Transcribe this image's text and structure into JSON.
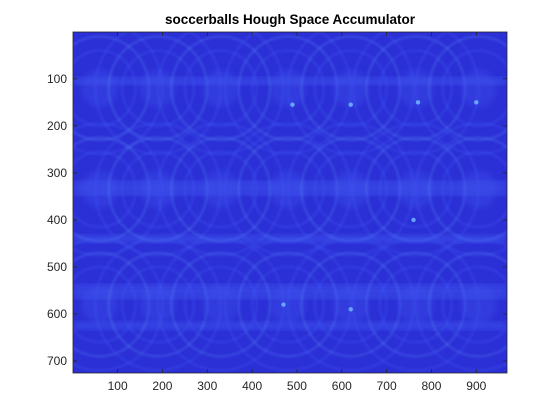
{
  "chart_data": {
    "type": "heatmap",
    "title": "soccerballs Hough Space Accumulator",
    "xlabel": "",
    "ylabel": "",
    "xlim": [
      0.5,
      968.5
    ],
    "ylim": [
      0.5,
      725.5
    ],
    "y_reversed": true,
    "grid": false,
    "colormap": "cool-blue",
    "xticks": [
      100,
      200,
      300,
      400,
      500,
      600,
      700,
      800,
      900
    ],
    "yticks": [
      100,
      200,
      300,
      400,
      500,
      600,
      700
    ],
    "colors": {
      "background": "#2b2fd6",
      "mid": "#3f55ee",
      "highlight": "#6aaaff",
      "axis": "#262626"
    },
    "ball_grid": {
      "columns_x": [
        60,
        190,
        330,
        480,
        620,
        765,
        905
      ],
      "rows_y": [
        120,
        335,
        580
      ],
      "radius_range": [
        80,
        140
      ]
    },
    "bright_bands_y": [
      105,
      325,
      340,
      440,
      545,
      560,
      625
    ],
    "bright_spots": [
      {
        "x": 490,
        "y": 155
      },
      {
        "x": 620,
        "y": 155
      },
      {
        "x": 900,
        "y": 150
      },
      {
        "x": 770,
        "y": 150
      },
      {
        "x": 470,
        "y": 580
      },
      {
        "x": 620,
        "y": 590
      },
      {
        "x": 760,
        "y": 400
      }
    ]
  }
}
